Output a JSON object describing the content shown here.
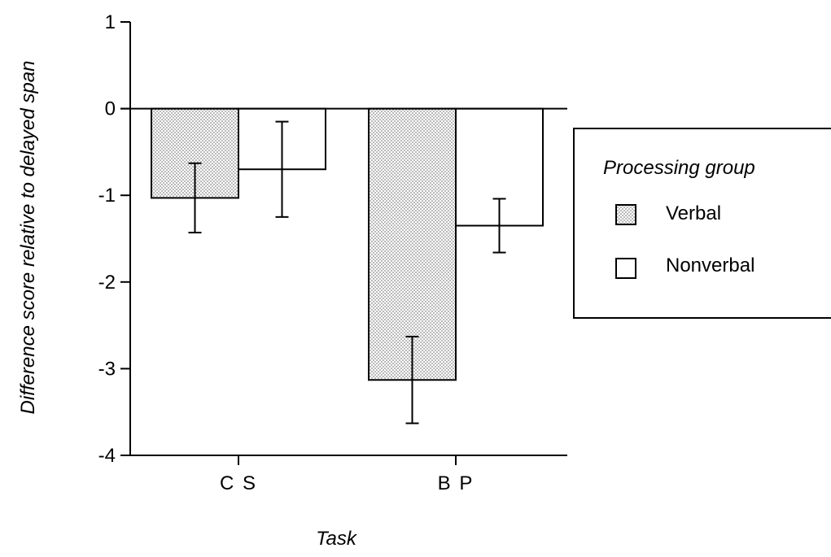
{
  "chart_data": {
    "type": "bar",
    "title": "",
    "xlabel": "Task",
    "ylabel": "Difference score relative to delayed span",
    "categories": [
      "C S",
      "B P"
    ],
    "ylim": [
      -4,
      1
    ],
    "yticks": [
      1,
      0,
      -1,
      -2,
      -3,
      -4
    ],
    "grid": false,
    "series": [
      {
        "name": "Verbal",
        "values": [
          -1.03,
          -3.13
        ],
        "error": [
          0.4,
          0.5
        ],
        "fill": "stippled"
      },
      {
        "name": "Nonverbal",
        "values": [
          -0.7,
          -1.35
        ],
        "error": [
          0.55,
          0.31
        ],
        "fill": "white"
      }
    ],
    "legend": {
      "title": "Processing group",
      "placement": "right",
      "items": [
        "Verbal",
        "Nonverbal"
      ]
    }
  },
  "colors": {
    "stroke": "#000000",
    "background": "#ffffff",
    "stipple": "#9a9a9a"
  }
}
